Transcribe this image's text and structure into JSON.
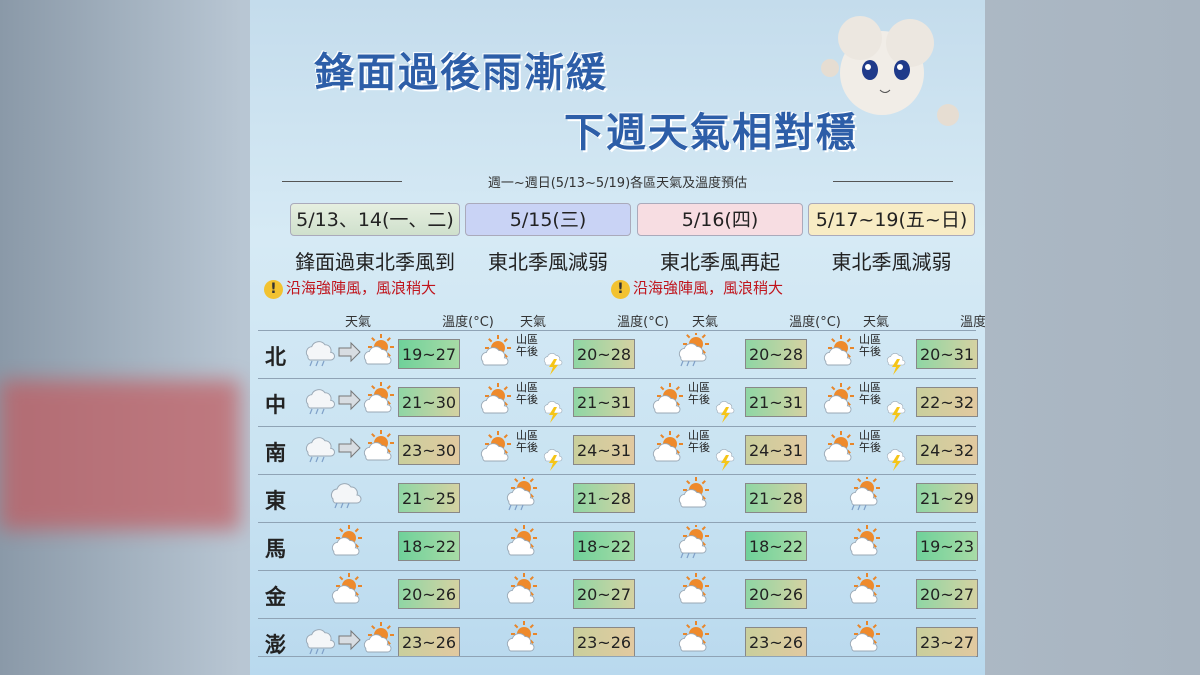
{
  "header": {
    "title_lines": [
      "鋒面過後雨漸緩",
      "下週天氣相對穩"
    ],
    "subtitle": "週一~週日(5/13~5/19)各區天氣及溫度預估"
  },
  "periods": [
    {
      "label": "5/13、14(一、二)",
      "description": "鋒面過東北季風到",
      "warning": "沿海強陣風，風浪稍大"
    },
    {
      "label": "5/15(三)",
      "description": "東北季風減弱"
    },
    {
      "label": "5/16(四)",
      "description": "東北季風再起",
      "warning": "沿海強陣風，風浪稍大"
    },
    {
      "label": "5/17~19(五~日)",
      "description": "東北季風減弱"
    }
  ],
  "columns": {
    "weather": "天氣",
    "temperature": "溫度(°C)"
  },
  "table": {
    "rows": [
      {
        "region": "北",
        "cells": [
          {
            "temp": "19~27"
          },
          {
            "temp": "20~28",
            "note": [
              "山區",
              "午後"
            ]
          },
          {
            "temp": "20~28"
          },
          {
            "temp": "20~31",
            "note": [
              "山區",
              "午後"
            ]
          }
        ]
      },
      {
        "region": "中",
        "cells": [
          {
            "temp": "21~30"
          },
          {
            "temp": "21~31",
            "note": [
              "山區",
              "午後"
            ]
          },
          {
            "temp": "21~31",
            "note": [
              "山區",
              "午後"
            ]
          },
          {
            "temp": "22~32",
            "note": [
              "山區",
              "午後"
            ]
          }
        ]
      },
      {
        "region": "南",
        "cells": [
          {
            "temp": "23~30"
          },
          {
            "temp": "24~31",
            "note": [
              "山區",
              "午後"
            ]
          },
          {
            "temp": "24~31",
            "note": [
              "山區",
              "午後"
            ]
          },
          {
            "temp": "24~32",
            "note": [
              "山區",
              "午後"
            ]
          }
        ]
      },
      {
        "region": "東",
        "cells": [
          {
            "temp": "21~25"
          },
          {
            "temp": "21~28"
          },
          {
            "temp": "21~28"
          },
          {
            "temp": "21~29"
          }
        ]
      },
      {
        "region": "馬",
        "cells": [
          {
            "temp": "18~22"
          },
          {
            "temp": "18~22"
          },
          {
            "temp": "18~22"
          },
          {
            "temp": "19~23"
          }
        ]
      },
      {
        "region": "金",
        "cells": [
          {
            "temp": "20~26"
          },
          {
            "temp": "20~27"
          },
          {
            "temp": "20~26"
          },
          {
            "temp": "20~27"
          }
        ]
      },
      {
        "region": "澎",
        "cells": [
          {
            "temp": "23~26"
          },
          {
            "temp": "23~26"
          },
          {
            "temp": "23~26"
          },
          {
            "temp": "23~27"
          }
        ]
      }
    ]
  }
}
